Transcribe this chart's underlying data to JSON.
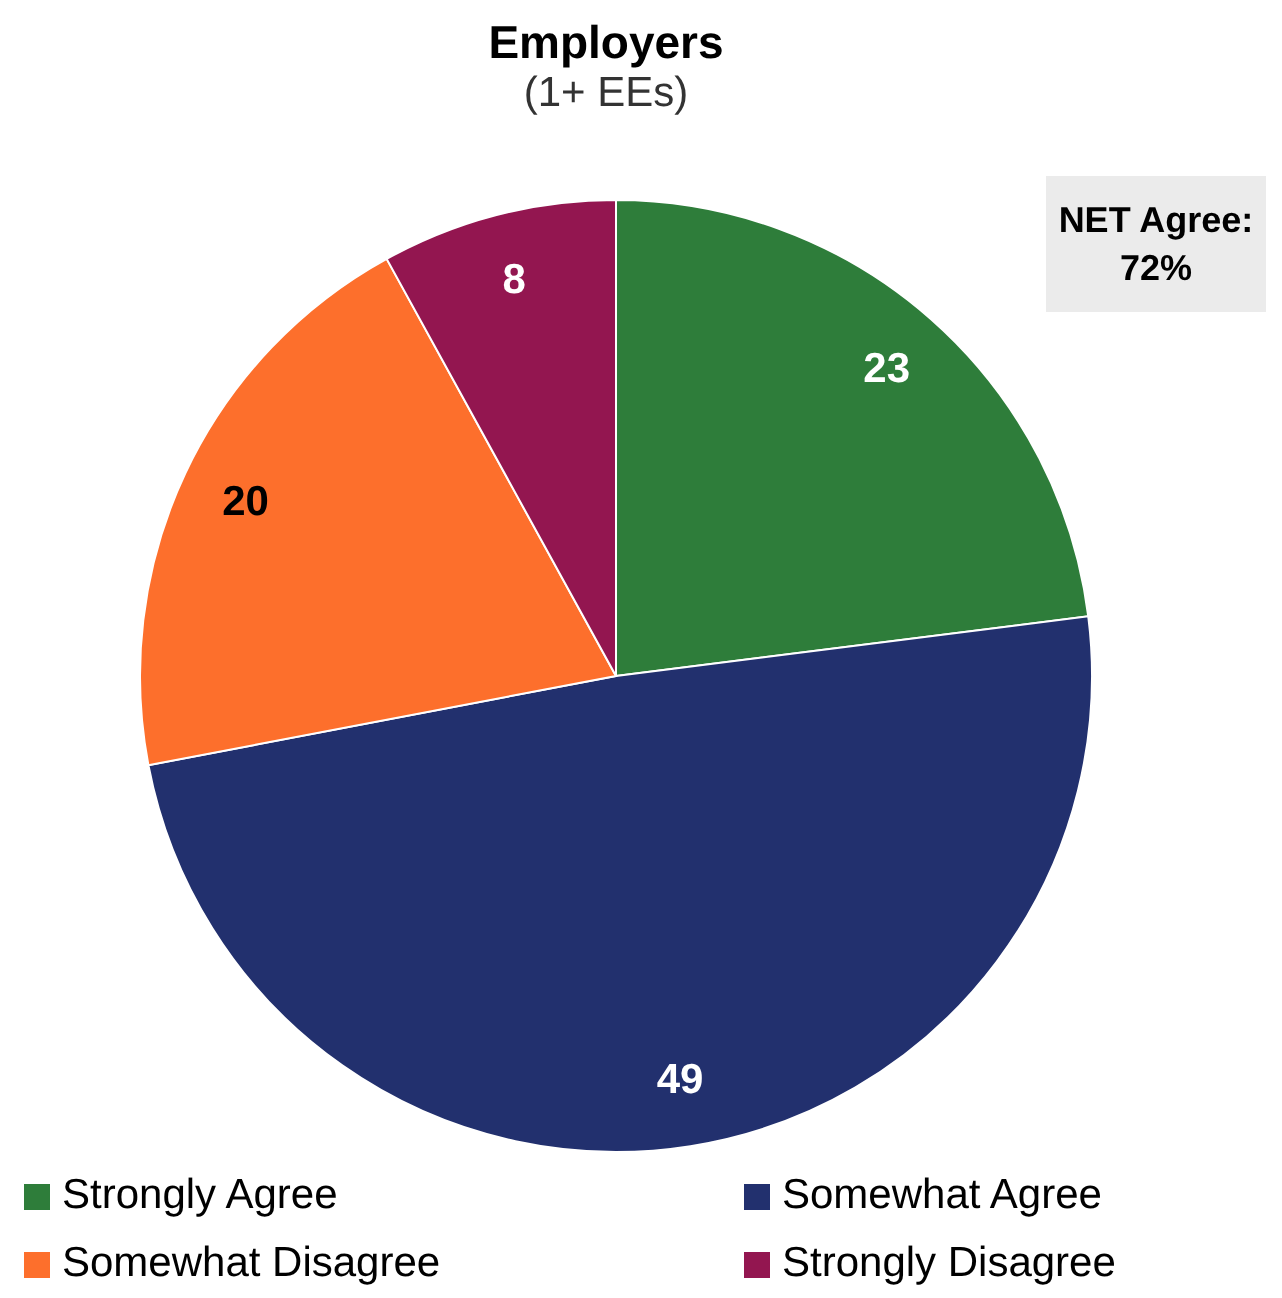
{
  "chart_data": {
    "type": "pie",
    "title": "Employers",
    "subtitle": "(1+ EEs)",
    "categories": [
      "Strongly Agree",
      "Somewhat Agree",
      "Somewhat Disagree",
      "Strongly Disagree"
    ],
    "values": [
      23,
      49,
      20,
      8
    ],
    "colors": [
      "#2e7d3a",
      "#22306e",
      "#fd6f2c",
      "#931650"
    ],
    "data_labels": true,
    "legend": "bottom",
    "annotations": [
      "NET Agree: 72%"
    ]
  }
}
